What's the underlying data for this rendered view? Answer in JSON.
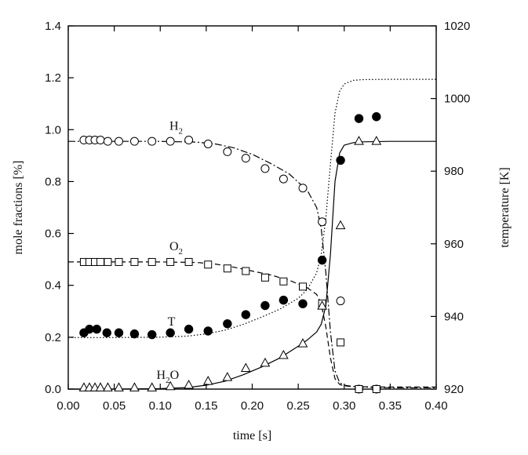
{
  "chart_data": {
    "type": "scatter",
    "xlabel": "time [s]",
    "ylabel": "mole fractions [%]",
    "y2label": "temperature [K]",
    "xlim": [
      0.0,
      0.4
    ],
    "ylim": [
      0.0,
      1.4
    ],
    "y2lim": [
      920,
      1020
    ],
    "x_ticks": [
      "0.00",
      "0.05",
      "0.10",
      "0.15",
      "0.20",
      "0.25",
      "0.30",
      "0.35",
      "0.40"
    ],
    "y_ticks": [
      "0.0",
      "0.2",
      "0.4",
      "0.6",
      "0.8",
      "1.0",
      "1.2",
      "1.4"
    ],
    "y2_ticks": [
      "920",
      "940",
      "960",
      "980",
      "1000",
      "1020"
    ],
    "grid": false,
    "annotations": [
      {
        "text": "H",
        "sub": "2",
        "x": 0.11,
        "y": 1.0
      },
      {
        "text": "O",
        "sub": "2",
        "x": 0.11,
        "y": 0.535
      },
      {
        "text": "T",
        "sub": "",
        "x": 0.108,
        "y": 0.245
      },
      {
        "text": "H",
        "sub": "2",
        "tail": "O",
        "x": 0.096,
        "y": 0.04
      }
    ],
    "series": [
      {
        "marker": "open-circle",
        "axis": "left",
        "x": [
          0.017,
          0.023,
          0.029,
          0.035,
          0.043,
          0.055,
          0.072,
          0.091,
          0.111,
          0.131,
          0.152,
          0.173,
          0.193,
          0.214,
          0.234,
          0.255,
          0.276,
          0.296,
          0.316,
          0.335
        ],
        "y": [
          0.96,
          0.96,
          0.96,
          0.96,
          0.955,
          0.955,
          0.955,
          0.955,
          0.955,
          0.96,
          0.945,
          0.915,
          0.89,
          0.85,
          0.81,
          0.775,
          0.645,
          0.34,
          0.0,
          0.0
        ]
      },
      {
        "marker": "open-square",
        "axis": "left",
        "x": [
          0.017,
          0.023,
          0.029,
          0.035,
          0.043,
          0.055,
          0.072,
          0.091,
          0.111,
          0.131,
          0.152,
          0.173,
          0.193,
          0.214,
          0.234,
          0.255,
          0.276,
          0.296,
          0.316,
          0.335
        ],
        "y": [
          0.49,
          0.49,
          0.49,
          0.49,
          0.49,
          0.49,
          0.49,
          0.49,
          0.49,
          0.49,
          0.48,
          0.465,
          0.455,
          0.43,
          0.415,
          0.395,
          0.33,
          0.18,
          0.0,
          0.0
        ]
      },
      {
        "marker": "filled-circle",
        "axis": "right",
        "x": [
          0.017,
          0.023,
          0.031,
          0.042,
          0.055,
          0.072,
          0.091,
          0.111,
          0.131,
          0.152,
          0.173,
          0.193,
          0.214,
          0.234,
          0.255,
          0.276,
          0.296,
          0.316,
          0.335
        ],
        "y": [
          935.5,
          936.5,
          936.5,
          935.5,
          935.5,
          935.2,
          935.0,
          935.5,
          936.5,
          936.0,
          938.0,
          940.5,
          943.0,
          944.5,
          943.5,
          955.5,
          983.0,
          994.5,
          995.0
        ]
      },
      {
        "marker": "open-triangle",
        "axis": "left",
        "x": [
          0.017,
          0.023,
          0.029,
          0.035,
          0.043,
          0.055,
          0.072,
          0.091,
          0.111,
          0.131,
          0.152,
          0.173,
          0.193,
          0.214,
          0.234,
          0.255,
          0.276,
          0.296,
          0.316,
          0.335
        ],
        "y": [
          0.005,
          0.005,
          0.005,
          0.005,
          0.005,
          0.005,
          0.005,
          0.005,
          0.01,
          0.015,
          0.03,
          0.045,
          0.08,
          0.1,
          0.13,
          0.175,
          0.32,
          0.63,
          0.955,
          0.955
        ]
      },
      {
        "line": "dash-dot",
        "axis": "left",
        "x": [
          0.0,
          0.05,
          0.1,
          0.14,
          0.16,
          0.18,
          0.2,
          0.22,
          0.24,
          0.26,
          0.27,
          0.275,
          0.28,
          0.285,
          0.29,
          0.295,
          0.3,
          0.31,
          0.32,
          0.35,
          0.4
        ],
        "y": [
          0.955,
          0.955,
          0.955,
          0.952,
          0.945,
          0.93,
          0.905,
          0.87,
          0.83,
          0.765,
          0.7,
          0.62,
          0.45,
          0.22,
          0.07,
          0.025,
          0.015,
          0.01,
          0.008,
          0.005,
          0.005
        ]
      },
      {
        "line": "dashed",
        "axis": "left",
        "x": [
          0.0,
          0.05,
          0.1,
          0.14,
          0.16,
          0.18,
          0.2,
          0.22,
          0.24,
          0.26,
          0.27,
          0.275,
          0.28,
          0.285,
          0.29,
          0.295,
          0.3,
          0.31,
          0.32,
          0.35,
          0.4
        ],
        "y": [
          0.49,
          0.49,
          0.49,
          0.488,
          0.482,
          0.47,
          0.455,
          0.44,
          0.42,
          0.39,
          0.365,
          0.33,
          0.24,
          0.12,
          0.04,
          0.018,
          0.012,
          0.01,
          0.009,
          0.008,
          0.008
        ]
      },
      {
        "line": "dotted",
        "axis": "right",
        "x": [
          0.0,
          0.05,
          0.1,
          0.13,
          0.15,
          0.17,
          0.19,
          0.21,
          0.23,
          0.25,
          0.26,
          0.27,
          0.275,
          0.28,
          0.285,
          0.29,
          0.295,
          0.3,
          0.31,
          0.32,
          0.35,
          0.4
        ],
        "y": [
          934.2,
          934.2,
          934.3,
          934.6,
          935.2,
          936.2,
          937.8,
          939.8,
          942.0,
          945.0,
          947.5,
          952.0,
          957.0,
          967.0,
          982.0,
          996.0,
          1002.0,
          1004.0,
          1005.0,
          1005.2,
          1005.3,
          1005.3
        ]
      },
      {
        "line": "solid",
        "axis": "left",
        "x": [
          0.0,
          0.05,
          0.1,
          0.13,
          0.15,
          0.17,
          0.19,
          0.21,
          0.23,
          0.25,
          0.26,
          0.27,
          0.275,
          0.28,
          0.285,
          0.29,
          0.295,
          0.3,
          0.31,
          0.32,
          0.35,
          0.4
        ],
        "y": [
          0.0,
          0.0,
          0.002,
          0.006,
          0.015,
          0.03,
          0.055,
          0.085,
          0.12,
          0.165,
          0.19,
          0.22,
          0.25,
          0.32,
          0.52,
          0.8,
          0.91,
          0.94,
          0.95,
          0.953,
          0.955,
          0.955
        ]
      }
    ]
  }
}
